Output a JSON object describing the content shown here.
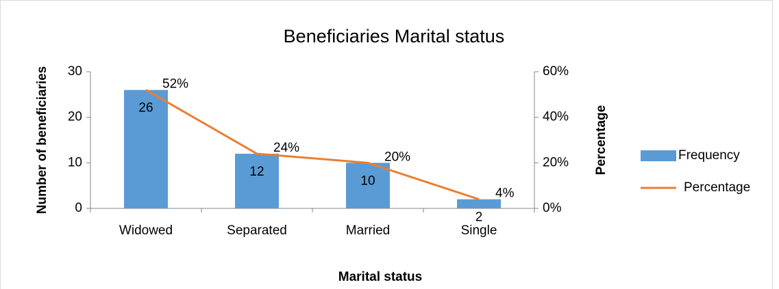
{
  "chart_data": {
    "type": "bar",
    "title": "Beneficiaries Marital status",
    "xlabel": "Marital status",
    "ylabel": "Number of beneficiaries",
    "y2label": "Percentage",
    "categories": [
      "Widowed",
      "Separated",
      "Married",
      "Single"
    ],
    "series": [
      {
        "name": "Frequency",
        "type": "bar",
        "color": "#5b9bd5",
        "values": [
          26,
          12,
          10,
          2
        ]
      },
      {
        "name": "Percentage",
        "type": "line",
        "axis": "y2",
        "color": "#ed7d31",
        "values": [
          52,
          24,
          20,
          4
        ],
        "value_labels": [
          "52%",
          "24%",
          "20%",
          "4%"
        ]
      }
    ],
    "ylim": [
      0,
      30
    ],
    "yticks": [
      0,
      10,
      20,
      30
    ],
    "y2lim": [
      0,
      60
    ],
    "y2ticks": [
      {
        "value": 0,
        "label": "0%"
      },
      {
        "value": 20,
        "label": "20%"
      },
      {
        "value": 40,
        "label": "40%"
      },
      {
        "value": 60,
        "label": "60%"
      }
    ],
    "grid": false,
    "legend": "right"
  }
}
